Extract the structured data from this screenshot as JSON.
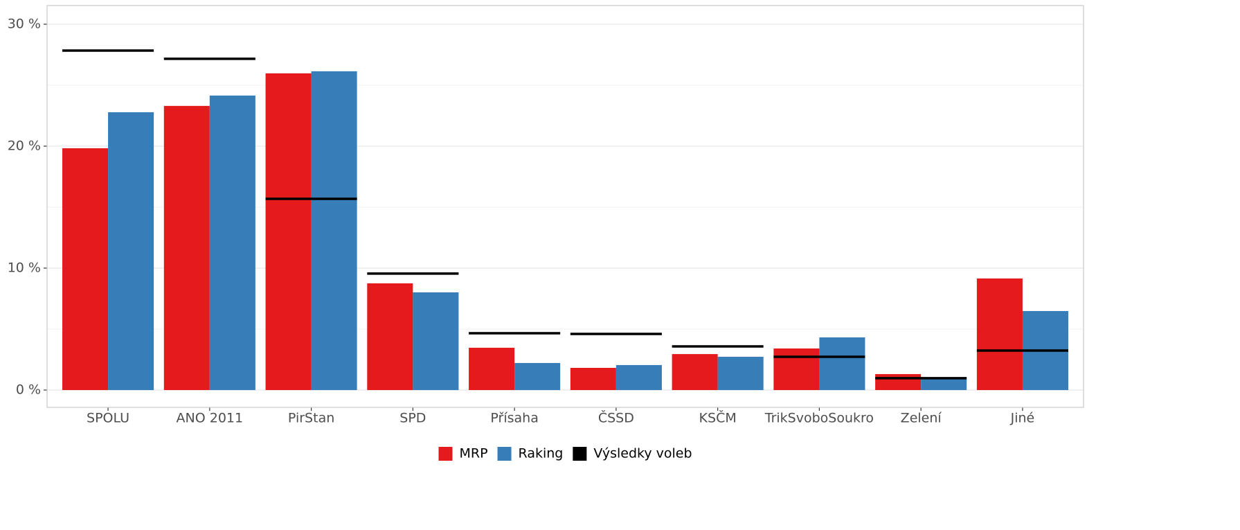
{
  "chart_data": {
    "type": "bar",
    "categories": [
      "SPOLU",
      "ANO 2011",
      "PirStan",
      "SPD",
      "Přísaha",
      "ČSSD",
      "KSČM",
      "TrikSvoboSoukro",
      "Zelení",
      "Jiné"
    ],
    "series": [
      {
        "name": "MRP",
        "color": "#e41a1c",
        "type": "bar",
        "values": [
          19.83,
          23.3,
          25.97,
          8.75,
          3.47,
          1.82,
          2.95,
          3.41,
          1.31,
          9.15
        ]
      },
      {
        "name": "Raking",
        "color": "#377eb8",
        "type": "bar",
        "values": [
          22.78,
          24.15,
          26.14,
          8.01,
          2.22,
          2.05,
          2.73,
          4.32,
          0.9,
          6.48
        ]
      },
      {
        "name": "Výsledky voleb",
        "color": "#000000",
        "type": "hline",
        "values": [
          27.84,
          27.16,
          15.68,
          9.55,
          4.66,
          4.6,
          3.58,
          2.73,
          0.97,
          3.24
        ]
      }
    ],
    "ylim": [
      -1.42,
      31.53
    ],
    "yticks": [
      {
        "value": 0,
        "label": "0 %"
      },
      {
        "value": 10,
        "label": "10 %"
      },
      {
        "value": 20,
        "label": "20 %"
      },
      {
        "value": 30,
        "label": "30 %"
      }
    ],
    "minor_yticks": [
      5,
      15,
      25
    ],
    "grid": true,
    "legend": "bottom"
  }
}
